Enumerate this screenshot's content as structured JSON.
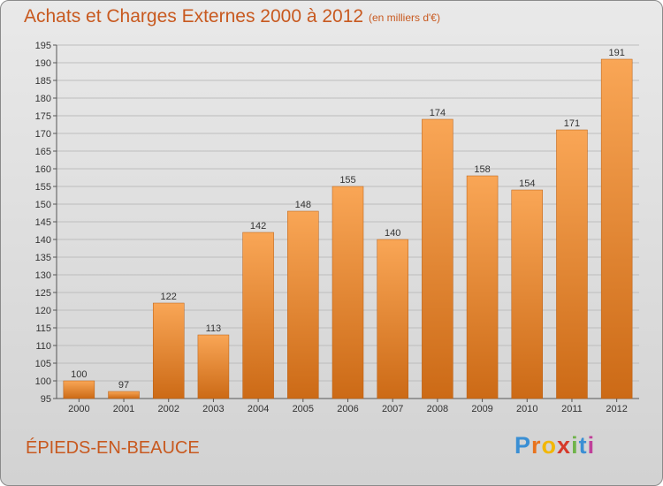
{
  "header": {
    "title": "Achats et Charges Externes 2000 à 2012",
    "subtitle": "(en milliers d'€)"
  },
  "footer": {
    "commune": "ÉPIEDS-EN-BEAUCE",
    "logo_letters": [
      "P",
      "r",
      "o",
      "x",
      "i",
      "t",
      "i"
    ],
    "logo_colors": [
      "#3a8fd4",
      "#e8731e",
      "#f2b705",
      "#d6392a",
      "#6fb34a",
      "#3a8fd4",
      "#c0409a"
    ]
  },
  "colors": {
    "bar_top": "#f9a656",
    "bar_bottom": "#cc6a16",
    "bar_edge": "#b85c10",
    "title": "#c8591f",
    "grid": "#bdbdbd"
  },
  "chart_data": {
    "type": "bar",
    "title": "Achats et Charges Externes 2000 à 2012",
    "subtitle": "(en milliers d'€)",
    "categories": [
      "2000",
      "2001",
      "2002",
      "2003",
      "2004",
      "2005",
      "2006",
      "2007",
      "2008",
      "2009",
      "2010",
      "2011",
      "2012"
    ],
    "values": [
      100,
      97,
      122,
      113,
      142,
      148,
      155,
      140,
      174,
      158,
      154,
      171,
      191
    ],
    "ylim": [
      95,
      195
    ],
    "yticks": [
      95,
      100,
      105,
      110,
      115,
      120,
      125,
      130,
      135,
      140,
      145,
      150,
      155,
      160,
      165,
      170,
      175,
      180,
      185,
      190,
      195
    ],
    "grid": true,
    "legend": "none"
  }
}
